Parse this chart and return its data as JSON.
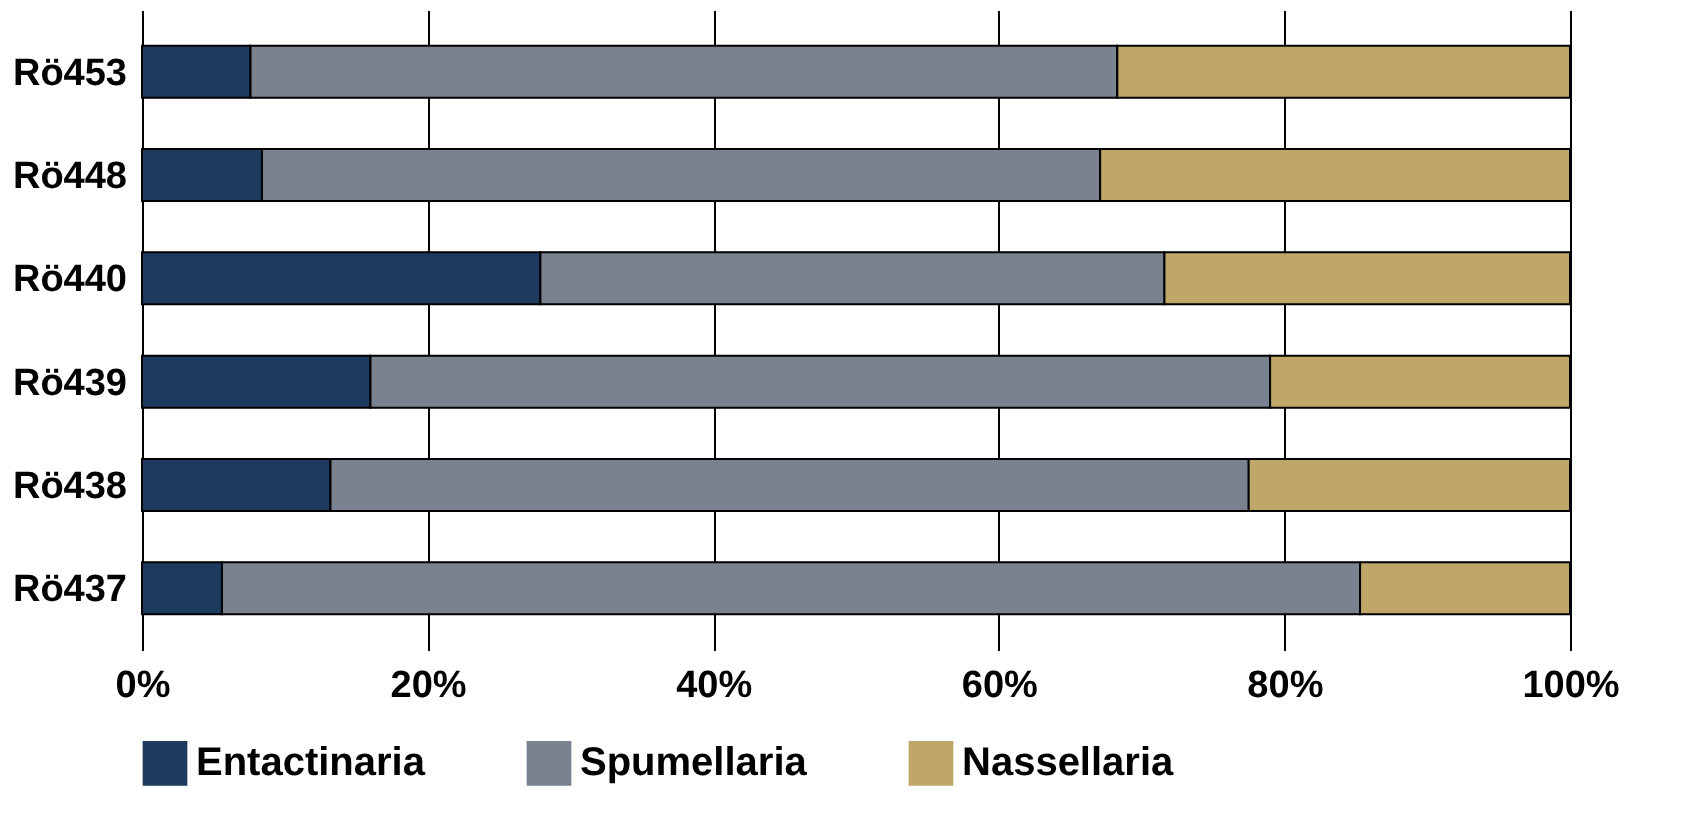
{
  "chart_data": {
    "type": "bar",
    "orientation": "horizontal",
    "stacked": true,
    "categories": [
      "Rö453",
      "Rö448",
      "Rö440",
      "Rö439",
      "Rö438",
      "Rö437"
    ],
    "series": [
      {
        "name": "Entactinaria",
        "color": "#1f3a5f",
        "values": [
          7.6,
          8.4,
          27.9,
          16.0,
          13.2,
          5.6
        ]
      },
      {
        "name": "Spumellaria",
        "color": "#7a8290",
        "values": [
          60.7,
          58.7,
          43.7,
          63.0,
          64.3,
          79.7
        ]
      },
      {
        "name": "Nassellaria",
        "color": "#bfa76a",
        "values": [
          31.7,
          32.9,
          28.4,
          21.0,
          22.5,
          14.7
        ]
      }
    ],
    "xlim": [
      0,
      100
    ],
    "xticks": [
      {
        "value": 0,
        "label": "0%"
      },
      {
        "value": 20,
        "label": "20%"
      },
      {
        "value": 40,
        "label": "40%"
      },
      {
        "value": 60,
        "label": "60%"
      },
      {
        "value": 80,
        "label": "80%"
      },
      {
        "value": 100,
        "label": "100%"
      }
    ],
    "grid": "x",
    "legend": "bottom"
  }
}
